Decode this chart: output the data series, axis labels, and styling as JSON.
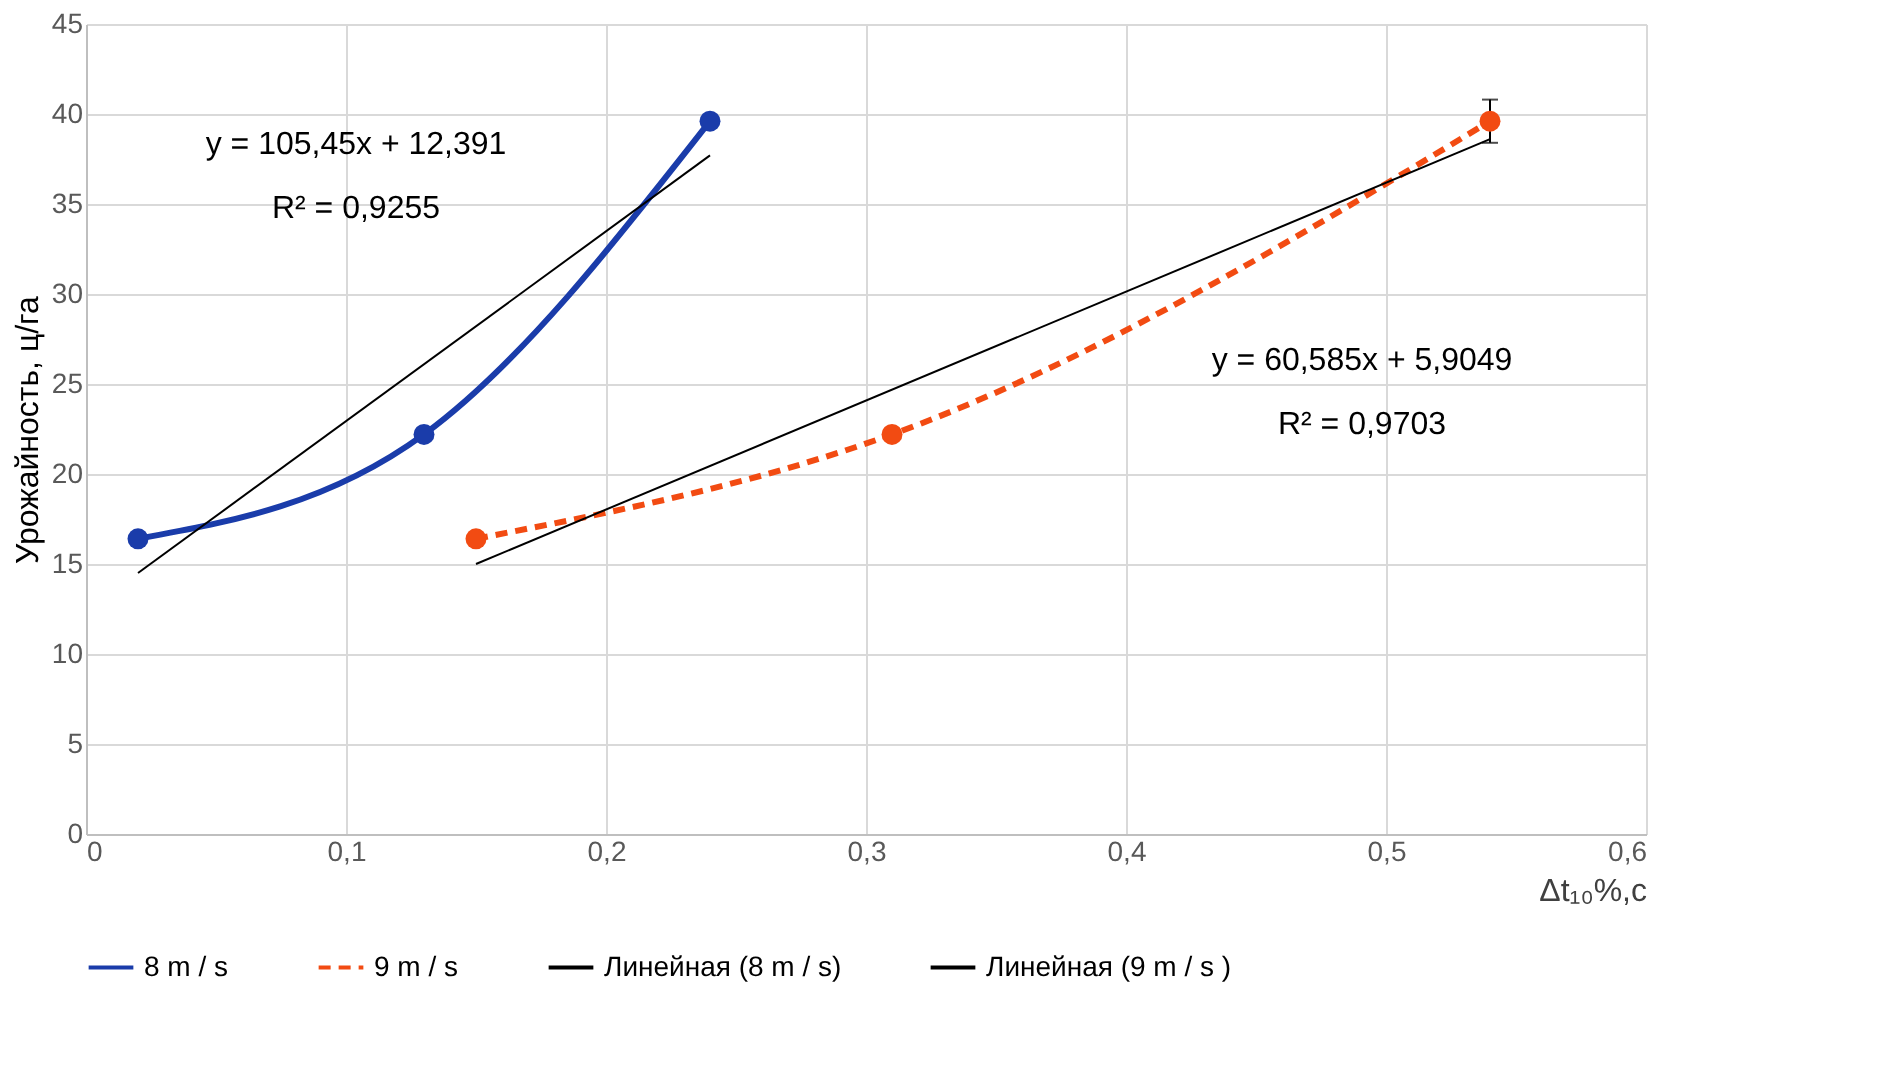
{
  "chart_data": {
    "type": "line",
    "ylabel": "Урожайность, ц/га",
    "xlabel": "Δt₁₀%,с",
    "xlim": [
      0,
      0.6
    ],
    "xticks": [
      0,
      {
        "value": 0.1,
        "label": "0,1"
      },
      {
        "value": 0.2,
        "label": "0,2"
      },
      {
        "value": 0.3,
        "label": "0,3"
      },
      {
        "value": 0.4,
        "label": "0,4"
      },
      {
        "value": 0.5,
        "label": "0,5"
      },
      {
        "value": 0.6,
        "label": "0,6"
      }
    ],
    "ylim": [
      0,
      45
    ],
    "yticks": [
      0,
      5,
      10,
      15,
      20,
      25,
      30,
      35,
      40,
      45
    ],
    "grid": true,
    "legend": "bottom",
    "series": [
      {
        "name": "8 m / s",
        "color": "#1a3caa",
        "x": [
          0.02,
          0.13,
          0.24
        ],
        "values": [
          16.4,
          22.2,
          39.6
        ],
        "marker": "circle",
        "line_style": "solid"
      },
      {
        "name": "9 m / s",
        "color": "#f24b12",
        "x": [
          0.15,
          0.31,
          0.54
        ],
        "values": [
          16.4,
          22.2,
          39.6
        ],
        "marker": "circle",
        "line_style": "dashed",
        "errors": [
          null,
          null,
          1.2
        ]
      },
      {
        "name": "Линейная (8 m / s)",
        "color": "#000000",
        "x": [
          0.02,
          0.24
        ],
        "values": [
          14.5,
          37.7
        ],
        "marker": "none",
        "line_style": "solid"
      },
      {
        "name": "Линейная (9 m / s )",
        "color": "#000000",
        "x": [
          0.15,
          0.54
        ],
        "values": [
          15.0,
          38.6
        ],
        "marker": "none",
        "line_style": "solid"
      }
    ],
    "annotations": [
      "y = 105,45x + 12,391",
      "R² = 0,9255",
      "y = 60,585x + 5,9049",
      "R² = 0,9703"
    ]
  }
}
